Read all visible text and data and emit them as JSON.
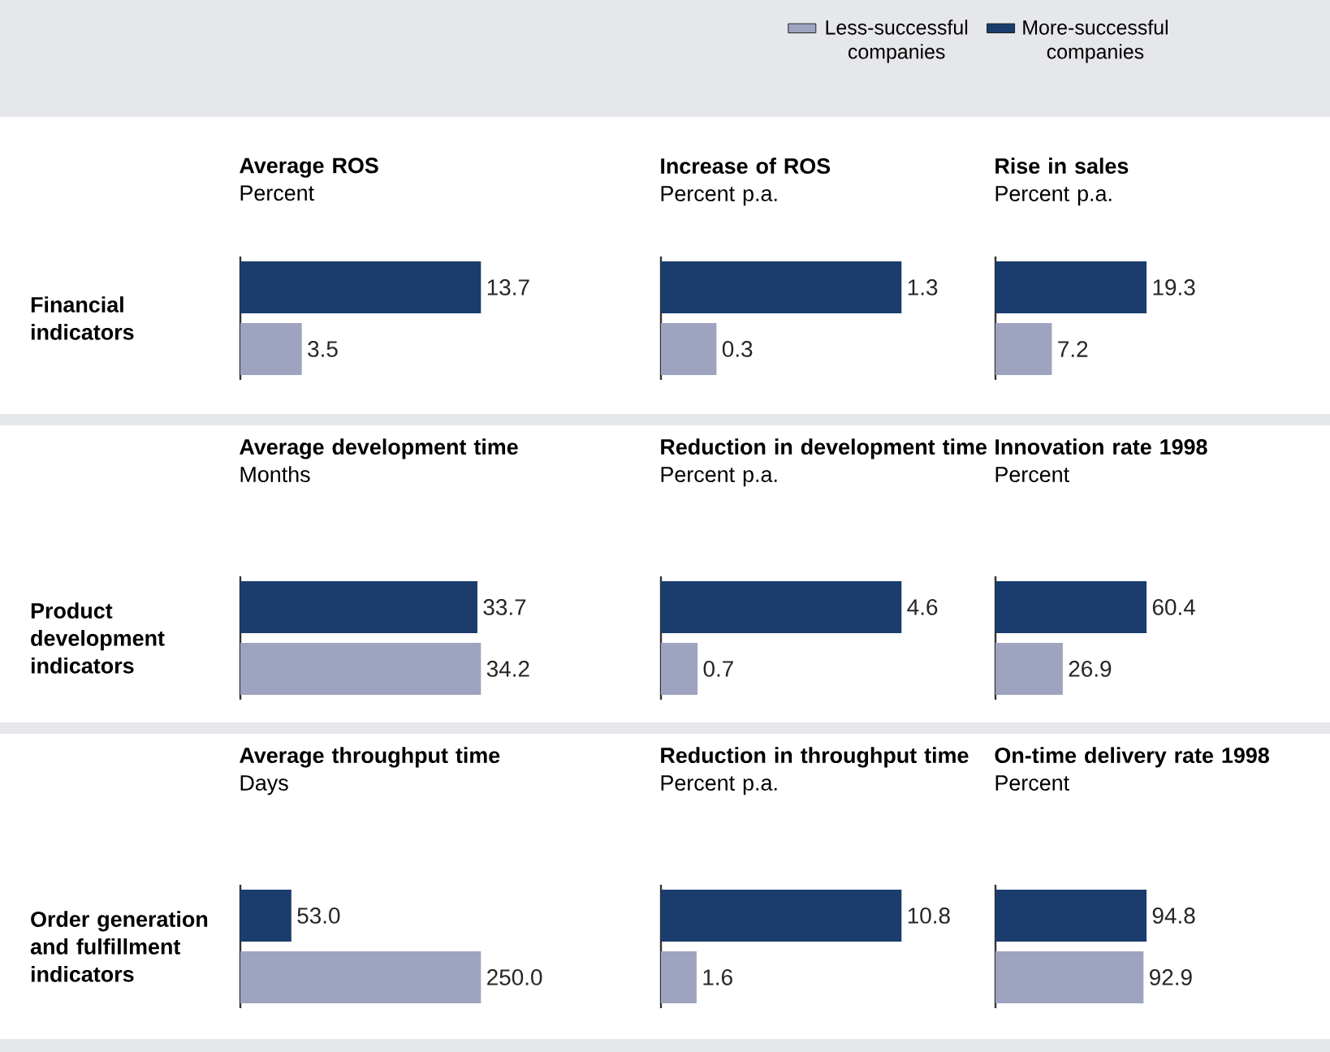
{
  "chart_data": [
    {
      "type": "bar",
      "orientation": "horizontal",
      "title": "Average ROS",
      "subtitle": "Percent",
      "ylabel": "Financial indicators",
      "categories": [
        null
      ],
      "legend": "top right",
      "series": [
        {
          "name": "More-successful companies",
          "color": "#1b3d6e",
          "values": [
            13.7
          ],
          "value_labels": [
            "13.7"
          ]
        },
        {
          "name": "Less-successful companies",
          "color": "#9ea3bf",
          "values": [
            3.5
          ],
          "value_labels": [
            "3.5"
          ]
        }
      ]
    },
    {
      "type": "bar",
      "orientation": "horizontal",
      "title": "Increase of ROS",
      "subtitle": "Percent p.a.",
      "categories": [
        null
      ],
      "series": [
        {
          "color": "#1b3d6e",
          "values": [
            1.3
          ],
          "value_labels": [
            "1.3"
          ]
        },
        {
          "color": "#9ea3bf",
          "values": [
            0.3
          ],
          "value_labels": [
            "0.3"
          ]
        }
      ]
    },
    {
      "type": "bar",
      "orientation": "horizontal",
      "title": "Rise in sales",
      "subtitle": "Percent p.a.",
      "categories": [
        null
      ],
      "series": [
        {
          "color": "#1b3d6e",
          "values": [
            19.3
          ],
          "value_labels": [
            "19.3"
          ]
        },
        {
          "color": "#9ea3bf",
          "values": [
            7.2
          ],
          "value_labels": [
            "7.2"
          ]
        }
      ]
    },
    {
      "type": "bar",
      "orientation": "horizontal",
      "title": "Average development time",
      "subtitle": "Months",
      "ylabel": "Product development indicators",
      "categories": [
        null
      ],
      "series": [
        {
          "color": "#1b3d6e",
          "values": [
            33.7
          ],
          "value_labels": [
            "33.7"
          ]
        },
        {
          "color": "#9ea3bf",
          "values": [
            34.2
          ],
          "value_labels": [
            "34.2"
          ]
        }
      ]
    },
    {
      "type": "bar",
      "orientation": "horizontal",
      "title": "Reduction in development time",
      "subtitle": "Percent p.a.",
      "categories": [
        null
      ],
      "series": [
        {
          "color": "#1b3d6e",
          "values": [
            4.6
          ],
          "value_labels": [
            "4.6"
          ]
        },
        {
          "color": "#9ea3bf",
          "values": [
            0.7
          ],
          "value_labels": [
            "0.7"
          ]
        }
      ]
    },
    {
      "type": "bar",
      "orientation": "horizontal",
      "title": "Innovation rate 1998",
      "subtitle": "Percent",
      "categories": [
        null
      ],
      "series": [
        {
          "color": "#1b3d6e",
          "values": [
            60.4
          ],
          "value_labels": [
            "60.4"
          ]
        },
        {
          "color": "#9ea3bf",
          "values": [
            26.9
          ],
          "value_labels": [
            "26.9"
          ]
        }
      ]
    },
    {
      "type": "bar",
      "orientation": "horizontal",
      "title": "Average throughput time",
      "subtitle": "Days",
      "ylabel": "Order generation and fulfillment indicators",
      "categories": [
        null
      ],
      "series": [
        {
          "color": "#1b3d6e",
          "values": [
            53.0
          ],
          "value_labels": [
            "53.0"
          ]
        },
        {
          "color": "#9ea3bf",
          "values": [
            250.0
          ],
          "value_labels": [
            "250.0"
          ]
        }
      ]
    },
    {
      "type": "bar",
      "orientation": "horizontal",
      "title": "Reduction in throughput time",
      "subtitle": "Percent p.a.",
      "categories": [
        null
      ],
      "series": [
        {
          "color": "#1b3d6e",
          "values": [
            10.8
          ],
          "value_labels": [
            "10.8"
          ]
        },
        {
          "color": "#9ea3bf",
          "values": [
            1.6
          ],
          "value_labels": [
            "1.6"
          ]
        }
      ]
    },
    {
      "type": "bar",
      "orientation": "horizontal",
      "title": "On-time delivery rate 1998",
      "subtitle": "Percent",
      "categories": [
        null
      ],
      "series": [
        {
          "color": "#1b3d6e",
          "values": [
            94.8
          ],
          "value_labels": [
            "94.8"
          ]
        },
        {
          "color": "#9ea3bf",
          "values": [
            92.9
          ],
          "value_labels": [
            "92.9"
          ]
        }
      ]
    }
  ]
}
